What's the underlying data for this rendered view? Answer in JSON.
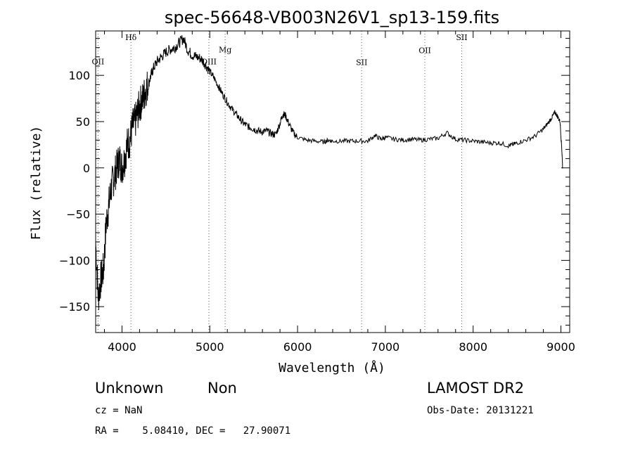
{
  "chart_data": {
    "type": "line",
    "title": "spec-56648-VB003N26V1_sp13-159.fits",
    "xlabel": "Wavelength (Å)",
    "ylabel": "Flux (relative)",
    "xlim": [
      3700,
      9100
    ],
    "ylim": [
      -178,
      148
    ],
    "xticks": [
      4000,
      5000,
      6000,
      7000,
      8000,
      9000
    ],
    "xtick_labels": [
      "4000",
      "5000",
      "6000",
      "7000",
      "8000",
      "9000"
    ],
    "yticks": [
      -150,
      -100,
      -50,
      0,
      50,
      100
    ],
    "ytick_labels": [
      "−150",
      "−100",
      "−50",
      "0",
      "50",
      "100"
    ],
    "grid": false,
    "line_color": "#000000",
    "spectral_lines": [
      {
        "label": "OII",
        "x": 3727,
        "label_y": 112
      },
      {
        "label": "Hδ",
        "x": 4102,
        "label_y": 138
      },
      {
        "label": "OIII",
        "x": 4990,
        "label_y": 112
      },
      {
        "label": "Mg",
        "x": 5175,
        "label_y": 125
      },
      {
        "label": "SII",
        "x": 6730,
        "label_y": 111
      },
      {
        "label": "OII",
        "x": 7450,
        "label_y": 124
      },
      {
        "label": "SII",
        "x": 7870,
        "label_y": 138
      }
    ],
    "series": [
      {
        "x": [
          3700,
          3730,
          3760,
          3790,
          3820,
          3850,
          3880,
          3910,
          3940,
          3970,
          4000,
          4030,
          4060,
          4090,
          4120,
          4150,
          4180,
          4210,
          4240,
          4270,
          4300,
          4330,
          4360,
          4400,
          4450,
          4500,
          4550,
          4600,
          4650,
          4700,
          4750,
          4800,
          4850,
          4900,
          4950,
          5000,
          5050,
          5100,
          5150,
          5200,
          5250,
          5300,
          5350,
          5400,
          5450,
          5500,
          5550,
          5600,
          5650,
          5700,
          5750,
          5800,
          5830,
          5860,
          5900,
          5950,
          6000,
          6100,
          6200,
          6300,
          6350,
          6400,
          6500,
          6600,
          6700,
          6800,
          6880,
          6950,
          7000,
          7100,
          7200,
          7300,
          7400,
          7500,
          7600,
          7700,
          7800,
          7900,
          8000,
          8100,
          8200,
          8300,
          8400,
          8450,
          8500,
          8600,
          8700,
          8800,
          8850,
          8900,
          8930,
          8960,
          8990,
          9010,
          9020
        ],
        "y": [
          -80,
          -140,
          -120,
          -110,
          -60,
          -40,
          -20,
          -10,
          0,
          10,
          0,
          10,
          25,
          30,
          45,
          50,
          60,
          70,
          75,
          85,
          90,
          100,
          108,
          115,
          120,
          125,
          128,
          130,
          135,
          140,
          127,
          122,
          120,
          118,
          112,
          104,
          97,
          88,
          79,
          71,
          64,
          58,
          52,
          47,
          44,
          42,
          40,
          39,
          40,
          37,
          36,
          48,
          58,
          57,
          48,
          38,
          33,
          30,
          29,
          28,
          30,
          29,
          29,
          29,
          29,
          29,
          35,
          31,
          33,
          31,
          30,
          31,
          30,
          31,
          32,
          38,
          31,
          30,
          29,
          28,
          27,
          27,
          24,
          25,
          27,
          30,
          34,
          42,
          48,
          55,
          60,
          56,
          50,
          20,
          0
        ]
      }
    ]
  },
  "footer": {
    "class_label": "Unknown",
    "subclass_label": "Non",
    "survey": "LAMOST DR2",
    "cz": "cz = NaN",
    "obs_date": "Obs-Date: 20131221",
    "coords": "RA =    5.08410, DEC =   27.90071"
  }
}
